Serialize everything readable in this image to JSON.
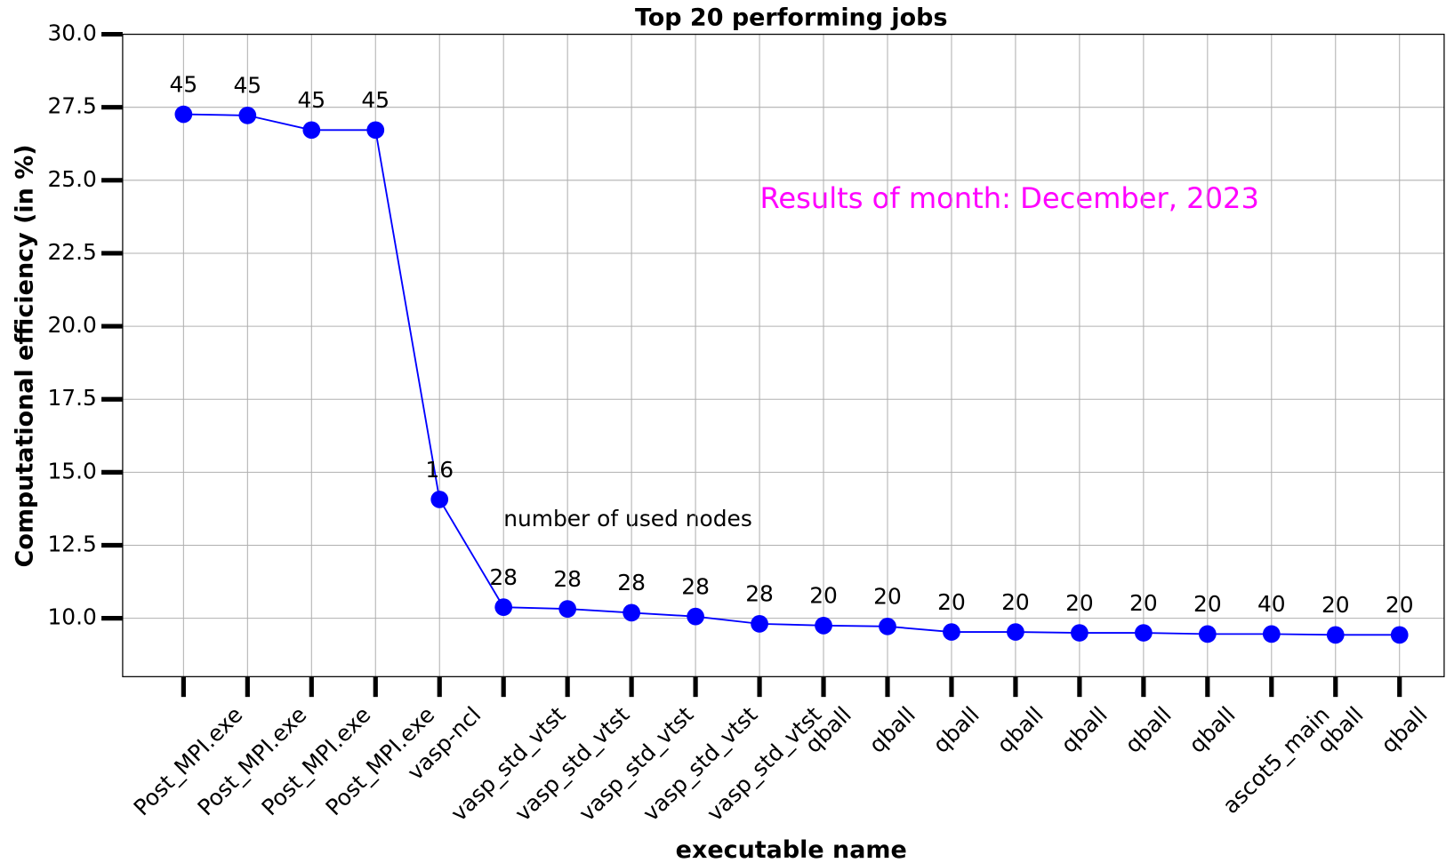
{
  "chart_data": {
    "type": "line",
    "title": "Top 20 performing jobs",
    "xlabel": "executable name",
    "ylabel": "Computational efficiency (in %)",
    "annotation": "number of used nodes",
    "note": "Results of month: December, 2023",
    "note_color": "#ff00ff",
    "color": "#0000ff",
    "grid": true,
    "categories": [
      "Post_MPI.exe",
      "Post_MPI.exe",
      "Post_MPI.exe",
      "Post_MPI.exe",
      "vasp-ncl",
      "vasp_std_vtst",
      "vasp_std_vtst",
      "vasp_std_vtst",
      "vasp_std_vtst",
      "vasp_std_vtst",
      "qball",
      "qball",
      "qball",
      "qball",
      "qball",
      "qball",
      "qball",
      "ascot5_main",
      "qball",
      "qball"
    ],
    "values": [
      27.26,
      27.22,
      26.72,
      26.72,
      14.07,
      10.38,
      10.32,
      10.19,
      10.06,
      9.81,
      9.75,
      9.72,
      9.53,
      9.53,
      9.5,
      9.5,
      9.46,
      9.46,
      9.43,
      9.43
    ],
    "point_labels": [
      45,
      45,
      45,
      45,
      16,
      28,
      28,
      28,
      28,
      28,
      20,
      20,
      20,
      20,
      20,
      20,
      20,
      40,
      20,
      20
    ],
    "ylim": [
      8.0,
      30.0
    ],
    "yticks": [
      {
        "value": 10,
        "label": "10.0"
      },
      12.5,
      {
        "value": 15,
        "label": "15.0"
      },
      17.5,
      {
        "value": 20,
        "label": "20.0"
      },
      22.5,
      {
        "value": 25,
        "label": "25.0"
      },
      27.5,
      {
        "value": 30,
        "label": "30.0"
      }
    ]
  }
}
